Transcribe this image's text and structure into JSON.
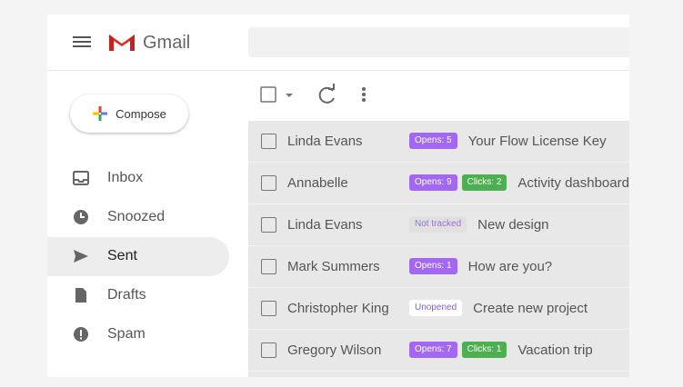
{
  "header": {
    "app_name": "Gmail"
  },
  "compose": {
    "label": "Compose"
  },
  "nav": [
    {
      "label": "Inbox",
      "selected": false
    },
    {
      "label": "Snoozed",
      "selected": false
    },
    {
      "label": "Sent",
      "selected": true
    },
    {
      "label": "Drafts",
      "selected": false
    },
    {
      "label": "Spam",
      "selected": false
    }
  ],
  "emails": [
    {
      "sender": "Linda Evans",
      "badges": [
        {
          "text": "Opens: 5",
          "color": "#a268f2",
          "text_color": "#ffffff"
        }
      ],
      "subject": "Your Flow License Key"
    },
    {
      "sender": "Annabelle",
      "badges": [
        {
          "text": "Opens: 9",
          "color": "#a268f2",
          "text_color": "#ffffff"
        },
        {
          "text": "Clicks: 2",
          "color": "#4caf50",
          "text_color": "#ffffff"
        }
      ],
      "subject": "Activity dashboard"
    },
    {
      "sender": "Linda Evans",
      "badges": [
        {
          "text": "Not tracked",
          "color": "#e0e0e0",
          "text_color": "#9a6fd8"
        }
      ],
      "subject": "New design"
    },
    {
      "sender": "Mark Summers",
      "badges": [
        {
          "text": "Opens: 1",
          "color": "#a268f2",
          "text_color": "#ffffff"
        }
      ],
      "subject": "How are you?"
    },
    {
      "sender": "Christopher King",
      "badges": [
        {
          "text": "Unopened",
          "color": "#ffffff",
          "text_color": "#8e5ad6"
        }
      ],
      "subject": "Create new project"
    },
    {
      "sender": "Gregory Wilson",
      "badges": [
        {
          "text": "Opens: 7",
          "color": "#a268f2",
          "text_color": "#ffffff"
        },
        {
          "text": "Clicks: 1",
          "color": "#4caf50",
          "text_color": "#ffffff"
        }
      ],
      "subject": "Vacation trip"
    }
  ]
}
